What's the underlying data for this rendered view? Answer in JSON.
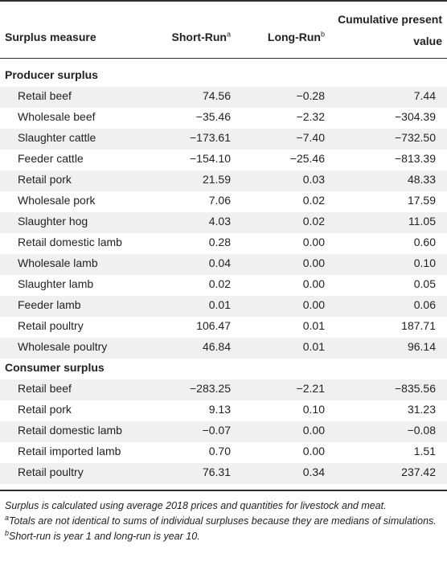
{
  "header": {
    "col1": "Surplus measure",
    "col2": "Short-Run",
    "col2_sup": "a",
    "col3": "Long-Run",
    "col3_sup": "b",
    "col4": "Cumulative present value"
  },
  "sections": [
    {
      "title": "Producer surplus",
      "rows": [
        {
          "label": "Retail beef",
          "short": "74.56",
          "long": "−0.28",
          "cum": "7.44"
        },
        {
          "label": "Wholesale beef",
          "short": "−35.46",
          "long": "−2.32",
          "cum": "−304.39"
        },
        {
          "label": "Slaughter cattle",
          "short": "−173.61",
          "long": "−7.40",
          "cum": "−732.50"
        },
        {
          "label": "Feeder cattle",
          "short": "−154.10",
          "long": "−25.46",
          "cum": "−813.39"
        },
        {
          "label": "Retail pork",
          "short": "21.59",
          "long": "0.03",
          "cum": "48.33"
        },
        {
          "label": "Wholesale pork",
          "short": "7.06",
          "long": "0.02",
          "cum": "17.59"
        },
        {
          "label": "Slaughter hog",
          "short": "4.03",
          "long": "0.02",
          "cum": "11.05"
        },
        {
          "label": "Retail domestic lamb",
          "short": "0.28",
          "long": "0.00",
          "cum": "0.60"
        },
        {
          "label": "Wholesale lamb",
          "short": "0.04",
          "long": "0.00",
          "cum": "0.10"
        },
        {
          "label": "Slaughter lamb",
          "short": "0.02",
          "long": "0.00",
          "cum": "0.05"
        },
        {
          "label": "Feeder lamb",
          "short": "0.01",
          "long": "0.00",
          "cum": "0.06"
        },
        {
          "label": "Retail poultry",
          "short": "106.47",
          "long": "0.01",
          "cum": "187.71"
        },
        {
          "label": "Wholesale poultry",
          "short": "46.84",
          "long": "0.01",
          "cum": "96.14"
        }
      ]
    },
    {
      "title": "Consumer surplus",
      "rows": [
        {
          "label": "Retail beef",
          "short": "−283.25",
          "long": "−2.21",
          "cum": "−835.56"
        },
        {
          "label": "Retail pork",
          "short": "9.13",
          "long": "0.10",
          "cum": "31.23"
        },
        {
          "label": "Retail domestic lamb",
          "short": "−0.07",
          "long": "0.00",
          "cum": "−0.08"
        },
        {
          "label": "Retail imported lamb",
          "short": "0.70",
          "long": "0.00",
          "cum": "1.51"
        },
        {
          "label": "Retail poultry",
          "short": "76.31",
          "long": "0.34",
          "cum": "237.42"
        }
      ]
    }
  ],
  "notes": {
    "main": "Surplus is calculated using average 2018 prices and quantities for livestock and meat.",
    "a_mark": "a",
    "a_text": "Totals are not identical to sums of individual surpluses because they are medians of simulations.",
    "b_mark": "b",
    "b_text": "Short-run is year 1 and long-run is year 10."
  }
}
